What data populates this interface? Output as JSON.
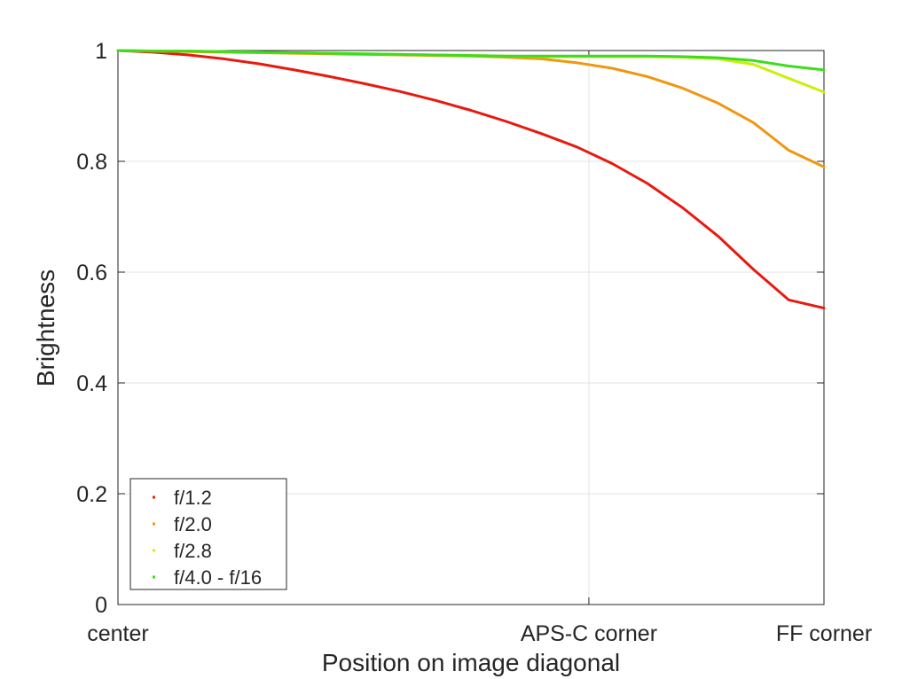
{
  "chart_data": {
    "type": "line",
    "title": "",
    "xlabel": "Position on image diagonal",
    "ylabel": "Brightness",
    "xlim": [
      0,
      1
    ],
    "ylim": [
      0,
      1
    ],
    "x_ticks": [
      {
        "value": 0,
        "label": "center"
      },
      {
        "value": 0.667,
        "label": "APS-C corner"
      },
      {
        "value": 1,
        "label": "FF corner"
      }
    ],
    "y_ticks": [
      {
        "value": 0,
        "label": "0"
      },
      {
        "value": 0.2,
        "label": "0.2"
      },
      {
        "value": 0.4,
        "label": "0.4"
      },
      {
        "value": 0.6,
        "label": "0.6"
      },
      {
        "value": 0.8,
        "label": "0.8"
      },
      {
        "value": 1,
        "label": "1"
      }
    ],
    "grid": true,
    "legend_position": "bottom-left",
    "x": [
      0,
      0.05,
      0.1,
      0.15,
      0.2,
      0.25,
      0.3,
      0.35,
      0.4,
      0.45,
      0.5,
      0.55,
      0.6,
      0.65,
      0.7,
      0.75,
      0.8,
      0.85,
      0.9,
      0.95,
      1.0
    ],
    "series": [
      {
        "name": "f/1.2",
        "color": "#e8190f",
        "values": [
          1.0,
          0.997,
          0.992,
          0.985,
          0.976,
          0.965,
          0.953,
          0.94,
          0.926,
          0.91,
          0.892,
          0.872,
          0.85,
          0.826,
          0.796,
          0.76,
          0.716,
          0.665,
          0.605,
          0.55,
          0.535
        ]
      },
      {
        "name": "f/2.0",
        "color": "#f0960f",
        "values": [
          1.0,
          0.999,
          0.998,
          0.997,
          0.996,
          0.995,
          0.994,
          0.993,
          0.992,
          0.991,
          0.99,
          0.988,
          0.985,
          0.978,
          0.968,
          0.953,
          0.932,
          0.905,
          0.87,
          0.82,
          0.79
        ]
      },
      {
        "name": "f/2.8",
        "color": "#c8f00a",
        "values": [
          1.0,
          0.999,
          0.999,
          0.998,
          0.997,
          0.996,
          0.995,
          0.994,
          0.993,
          0.992,
          0.991,
          0.99,
          0.989,
          0.989,
          0.989,
          0.989,
          0.988,
          0.985,
          0.975,
          0.95,
          0.925
        ]
      },
      {
        "name": "f/4.0 - f/16",
        "color": "#3cdc1e",
        "values": [
          1.0,
          0.999,
          0.999,
          0.998,
          0.997,
          0.996,
          0.995,
          0.994,
          0.993,
          0.992,
          0.991,
          0.99,
          0.99,
          0.99,
          0.99,
          0.99,
          0.989,
          0.987,
          0.982,
          0.972,
          0.965
        ]
      }
    ]
  }
}
